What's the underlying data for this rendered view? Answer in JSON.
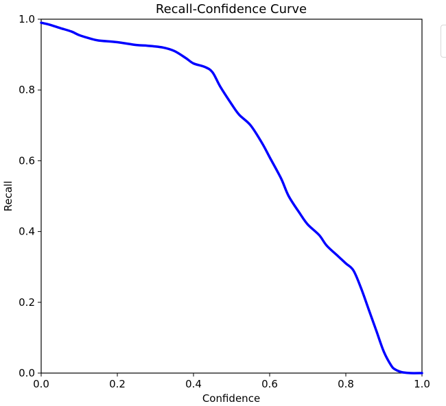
{
  "chart_data": {
    "type": "line",
    "title": "Recall-Confidence Curve",
    "xlabel": "Confidence",
    "ylabel": "Recall",
    "xlim": [
      0.0,
      1.0
    ],
    "ylim": [
      0.0,
      1.0
    ],
    "xticks": [
      "0.0",
      "0.2",
      "0.4",
      "0.6",
      "0.8",
      "1.0"
    ],
    "yticks": [
      "0.0",
      "0.2",
      "0.4",
      "0.6",
      "0.8",
      "1.0"
    ],
    "grid": false,
    "series": [
      {
        "color": "#0000ff",
        "x": [
          0.0,
          0.02,
          0.05,
          0.08,
          0.1,
          0.13,
          0.15,
          0.2,
          0.25,
          0.28,
          0.32,
          0.35,
          0.38,
          0.4,
          0.43,
          0.45,
          0.47,
          0.5,
          0.52,
          0.55,
          0.58,
          0.6,
          0.63,
          0.65,
          0.68,
          0.7,
          0.73,
          0.75,
          0.78,
          0.8,
          0.82,
          0.84,
          0.86,
          0.88,
          0.9,
          0.92,
          0.93,
          0.94,
          0.95,
          0.97,
          1.0
        ],
        "y": [
          0.99,
          0.985,
          0.975,
          0.965,
          0.955,
          0.945,
          0.94,
          0.935,
          0.927,
          0.925,
          0.92,
          0.91,
          0.89,
          0.875,
          0.865,
          0.85,
          0.81,
          0.76,
          0.73,
          0.7,
          0.65,
          0.61,
          0.55,
          0.5,
          0.45,
          0.42,
          0.39,
          0.36,
          0.33,
          0.31,
          0.29,
          0.24,
          0.18,
          0.12,
          0.06,
          0.02,
          0.01,
          0.005,
          0.002,
          0.0,
          0.0
        ]
      }
    ]
  }
}
